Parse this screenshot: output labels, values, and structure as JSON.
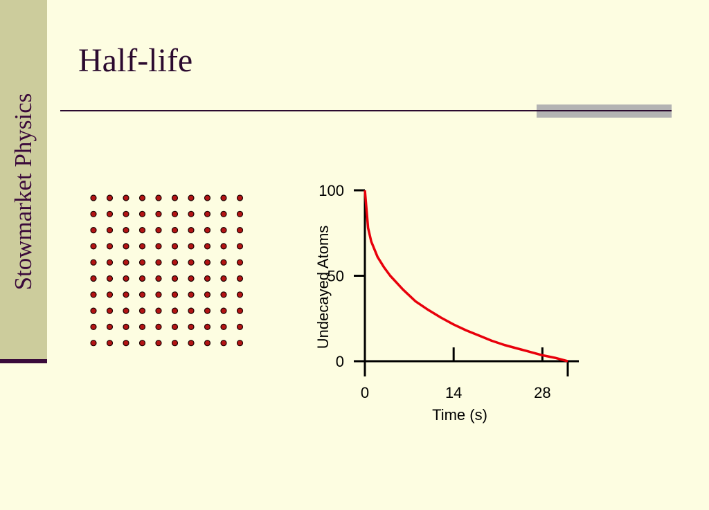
{
  "sidebar": {
    "label": "Stowmarket Physics"
  },
  "slide": {
    "title": "Half-life"
  },
  "atoms": {
    "rows": 10,
    "cols": 10,
    "color": "#b31414",
    "outline": "#1a0000"
  },
  "chart_data": {
    "type": "line",
    "xlabel": "Time (s)",
    "ylabel": "Undecayed Atoms",
    "x_ticks": [
      0,
      14,
      28
    ],
    "y_ticks": [
      0,
      50,
      100
    ],
    "xlim": [
      0,
      32
    ],
    "ylim": [
      0,
      100
    ],
    "series": [
      {
        "color": "#e8000b",
        "x": [
          0,
          0.5,
          1,
          2,
          3,
          4,
          5,
          6,
          8,
          10,
          12,
          14,
          16,
          18,
          20,
          22,
          24,
          26,
          28,
          30,
          32
        ],
        "y": [
          100,
          78,
          70,
          61,
          55,
          50,
          46,
          42,
          35,
          30,
          25.5,
          21.5,
          18,
          15,
          12,
          9.5,
          7.5,
          5.5,
          3.5,
          2,
          0
        ]
      }
    ]
  }
}
